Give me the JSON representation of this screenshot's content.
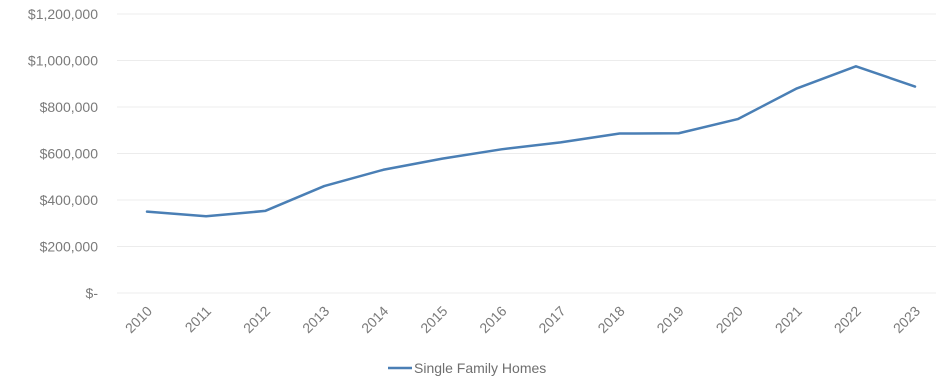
{
  "chart_data": {
    "type": "line",
    "title": "",
    "xlabel": "",
    "ylabel": "",
    "categories": [
      "2010",
      "2011",
      "2012",
      "2013",
      "2014",
      "2015",
      "2016",
      "2017",
      "2018",
      "2019",
      "2020",
      "2021",
      "2022",
      "2023"
    ],
    "series": [
      {
        "name": "Single Family Homes",
        "color": "#4a7fb5",
        "values": [
          350000,
          330000,
          353000,
          460000,
          530000,
          578000,
          618000,
          648000,
          686000,
          687000,
          748000,
          880000,
          975000,
          888000
        ]
      }
    ],
    "ylim": [
      0,
      1200000
    ],
    "y_ticks": [
      {
        "value": 0,
        "label": "$-"
      },
      {
        "value": 200000,
        "label": "$200,000"
      },
      {
        "value": 400000,
        "label": "$400,000"
      },
      {
        "value": 600000,
        "label": "$600,000"
      },
      {
        "value": 800000,
        "label": "$800,000"
      },
      {
        "value": 1000000,
        "label": "$1,000,000"
      },
      {
        "value": 1200000,
        "label": "$1,200,000"
      }
    ],
    "grid": true,
    "legend_position": "bottom-center"
  }
}
